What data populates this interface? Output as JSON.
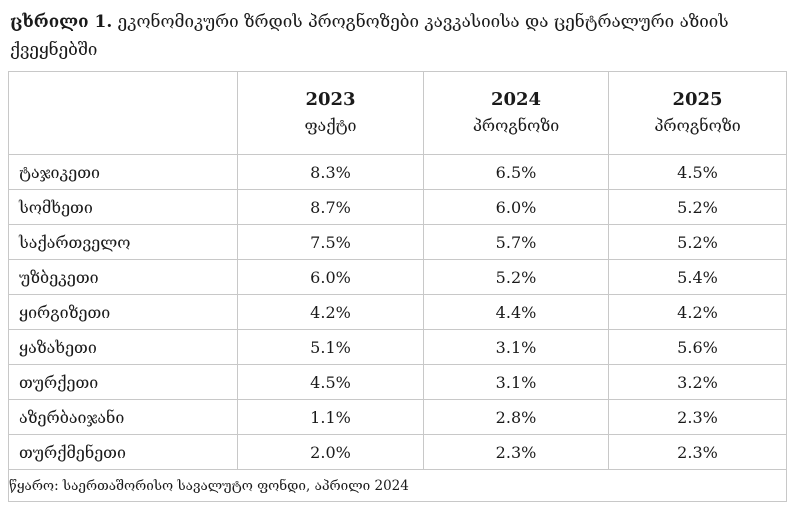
{
  "caption": {
    "label": "ცხრილი 1.",
    "text": " ეკონომიკური ზრდის პროგნოზები კავკასიისა და ცენტრალური აზიის ქვეყნებში"
  },
  "table": {
    "columns": [
      {
        "year": "2023",
        "sub": "ფაქტი"
      },
      {
        "year": "2024",
        "sub": "პროგნოზი"
      },
      {
        "year": "2025",
        "sub": "პროგნოზი"
      }
    ],
    "rows": [
      {
        "country": "ტაჯიკეთი",
        "values": [
          "8.3%",
          "6.5%",
          "4.5%"
        ]
      },
      {
        "country": "სომხეთი",
        "values": [
          "8.7%",
          "6.0%",
          "5.2%"
        ]
      },
      {
        "country": "საქართველო",
        "values": [
          "7.5%",
          "5.7%",
          "5.2%"
        ]
      },
      {
        "country": "უზბეკეთი",
        "values": [
          "6.0%",
          "5.2%",
          "5.4%"
        ]
      },
      {
        "country": "ყირგიზეთი",
        "values": [
          "4.2%",
          "4.4%",
          "4.2%"
        ]
      },
      {
        "country": "ყაზახეთი",
        "values": [
          "5.1%",
          "3.1%",
          "5.6%"
        ]
      },
      {
        "country": "თურქეთი",
        "values": [
          "4.5%",
          "3.1%",
          "3.2%"
        ]
      },
      {
        "country": "აზერბაიჯანი",
        "values": [
          "1.1%",
          "2.8%",
          "2.3%"
        ]
      },
      {
        "country": "თურქმენეთი",
        "values": [
          "2.0%",
          "2.3%",
          "2.3%"
        ]
      }
    ],
    "source": "წყარო: საერთაშორისო სავალუტო ფონდი, აპრილი 2024"
  }
}
